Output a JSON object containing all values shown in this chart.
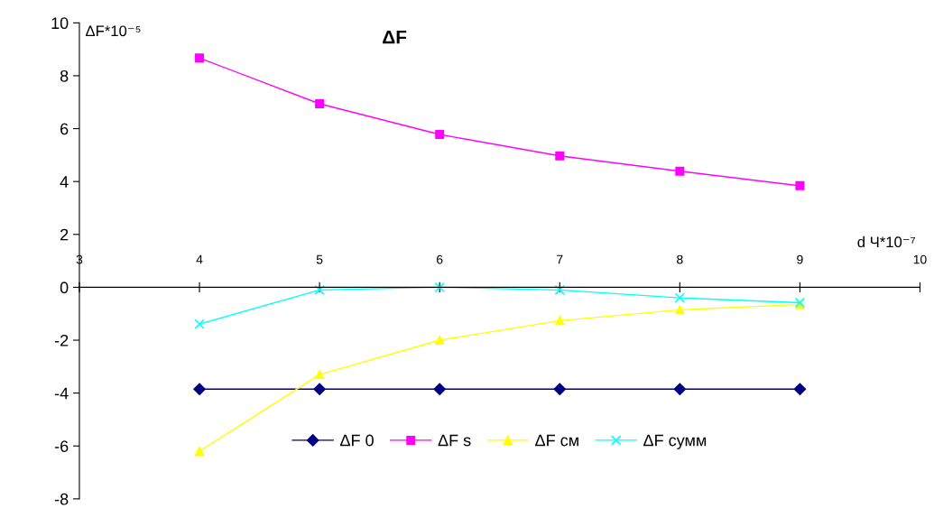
{
  "chart_data": {
    "type": "line",
    "title": "ΔF",
    "xlabel": "d Ч*10⁻⁷",
    "ylabel": "ΔF*10⁻⁵",
    "x": [
      4,
      5,
      6,
      7,
      8,
      9
    ],
    "series": [
      {
        "name": "ΔF 0",
        "color": "#000080",
        "marker": "diamond",
        "values": [
          -3.85,
          -3.85,
          -3.85,
          -3.85,
          -3.85,
          -3.85
        ]
      },
      {
        "name": "ΔF s",
        "color": "#ff00ff",
        "marker": "square",
        "values": [
          8.67,
          6.94,
          5.78,
          4.97,
          4.39,
          3.84
        ]
      },
      {
        "name": "ΔF см",
        "color": "#ffff00",
        "marker": "triangle",
        "values": [
          -6.2,
          -3.3,
          -2.0,
          -1.26,
          -0.85,
          -0.65
        ]
      },
      {
        "name": "ΔF сумм",
        "color": "#00ffff",
        "marker": "cross",
        "values": [
          -1.39,
          -0.1,
          0,
          -0.1,
          -0.4,
          -0.58
        ]
      }
    ],
    "xlim": [
      3,
      10
    ],
    "xticks": [
      3,
      4,
      5,
      6,
      7,
      8,
      9,
      10
    ],
    "ylim": [
      -8,
      10
    ],
    "yticks": [
      -8,
      -6,
      -4,
      -2,
      0,
      2,
      4,
      6,
      8,
      10
    ],
    "grid": false,
    "legend": "bottom"
  }
}
